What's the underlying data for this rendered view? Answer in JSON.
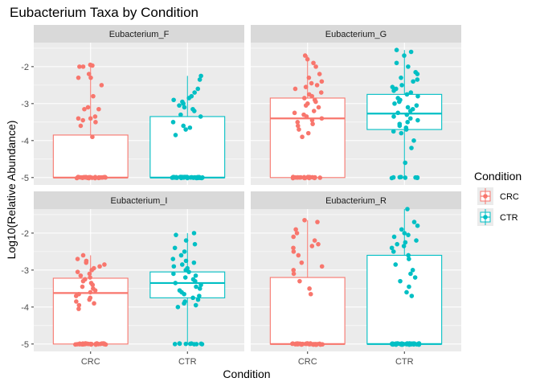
{
  "chart_data": {
    "type": "boxplot",
    "title": "Eubacterium Taxa by Condition",
    "xlabel": "Condition",
    "ylabel": "Log10(Relative Abundance)",
    "categories": [
      "CRC",
      "CTR"
    ],
    "ylim": [
      -5.2,
      -1.35
    ],
    "yticks": [
      -5,
      -4,
      -3,
      -2
    ],
    "ytick_labels": [
      "-5",
      "-4",
      "-3",
      "-2"
    ],
    "grid": true,
    "legend": {
      "title": "Condition",
      "position": "right",
      "entries": [
        {
          "name": "CRC",
          "color": "#F8766D"
        },
        {
          "name": "CTR",
          "color": "#00BFC4"
        }
      ]
    },
    "colors": {
      "CRC": "#F8766D",
      "CTR": "#00BFC4",
      "panel_bg": "#EBEBEB",
      "strip_bg": "#D9D9D9"
    },
    "panels": [
      {
        "label": "Eubacterium_F",
        "boxes": [
          {
            "group": "CRC",
            "min": -5.0,
            "q1": -5.0,
            "median": -5.0,
            "q3": -3.85,
            "max": -1.95,
            "n_floor": 28,
            "points": [
              -1.95,
              -1.97,
              -2.0,
              -2.0,
              -2.2,
              -2.3,
              -2.3,
              -2.5,
              -2.8,
              -3.1,
              -3.15,
              -3.15,
              -3.35,
              -3.4,
              -3.4,
              -3.45,
              -3.5,
              -3.6,
              -3.9
            ]
          },
          {
            "group": "CTR",
            "min": -5.0,
            "q1": -5.0,
            "median": -5.0,
            "q3": -3.35,
            "max": -2.25,
            "n_floor": 38,
            "points": [
              -2.25,
              -2.35,
              -2.6,
              -2.7,
              -2.8,
              -2.85,
              -2.9,
              -2.95,
              -3.0,
              -3.05,
              -3.1,
              -3.15,
              -3.2,
              -3.3,
              -3.35,
              -3.5,
              -3.6,
              -3.65,
              -3.7,
              -3.85
            ]
          }
        ]
      },
      {
        "label": "Eubacterium_G",
        "boxes": [
          {
            "group": "CRC",
            "min": -5.0,
            "q1": -5.0,
            "median": -3.4,
            "q3": -2.85,
            "max": -1.7,
            "n_floor": 22,
            "points": [
              -1.7,
              -1.8,
              -1.9,
              -2.0,
              -2.2,
              -2.3,
              -2.4,
              -2.45,
              -2.5,
              -2.55,
              -2.6,
              -2.7,
              -2.75,
              -2.8,
              -2.85,
              -2.9,
              -2.95,
              -3.0,
              -3.05,
              -3.1,
              -3.2,
              -3.25,
              -3.3,
              -3.35,
              -3.4,
              -3.45,
              -3.5,
              -3.55,
              -3.6,
              -3.7,
              -3.8,
              -3.9
            ]
          },
          {
            "group": "CTR",
            "min": -5.0,
            "q1": -3.7,
            "median": -3.27,
            "q3": -2.75,
            "max": -1.55,
            "n_floor": 8,
            "points": [
              -1.55,
              -1.6,
              -1.7,
              -1.9,
              -2.0,
              -2.15,
              -2.2,
              -2.3,
              -2.35,
              -2.4,
              -2.5,
              -2.55,
              -2.6,
              -2.65,
              -2.7,
              -2.75,
              -2.8,
              -2.85,
              -2.9,
              -2.95,
              -3.0,
              -3.05,
              -3.1,
              -3.15,
              -3.2,
              -3.25,
              -3.3,
              -3.35,
              -3.4,
              -3.45,
              -3.5,
              -3.55,
              -3.6,
              -3.65,
              -3.7,
              -3.75,
              -3.8,
              -4.0,
              -4.2,
              -4.6
            ]
          }
        ]
      },
      {
        "label": "Eubacterium_I",
        "boxes": [
          {
            "group": "CRC",
            "min": -5.0,
            "q1": -5.0,
            "median": -3.62,
            "q3": -3.22,
            "max": -2.6,
            "n_floor": 34,
            "points": [
              -2.6,
              -2.7,
              -2.75,
              -2.8,
              -2.85,
              -2.9,
              -2.95,
              -3.0,
              -3.05,
              -3.1,
              -3.15,
              -3.2,
              -3.25,
              -3.3,
              -3.35,
              -3.4,
              -3.45,
              -3.5,
              -3.55,
              -3.6,
              -3.65,
              -3.7,
              -3.75,
              -3.8,
              -3.85,
              -3.9,
              -3.95,
              -4.05
            ]
          },
          {
            "group": "CTR",
            "min": -5.0,
            "q1": -3.75,
            "median": -3.35,
            "q3": -3.05,
            "max": -2.0,
            "n_floor": 10,
            "points": [
              -2.0,
              -2.05,
              -2.2,
              -2.3,
              -2.4,
              -2.5,
              -2.6,
              -2.7,
              -2.75,
              -2.8,
              -2.85,
              -2.9,
              -2.95,
              -3.0,
              -3.05,
              -3.1,
              -3.15,
              -3.2,
              -3.25,
              -3.3,
              -3.35,
              -3.4,
              -3.45,
              -3.5,
              -3.55,
              -3.6,
              -3.65,
              -3.7,
              -3.75,
              -3.8,
              -3.85,
              -3.9,
              -3.95,
              -4.0
            ]
          }
        ]
      },
      {
        "label": "Eubacterium_R",
        "boxes": [
          {
            "group": "CRC",
            "min": -5.0,
            "q1": -5.0,
            "median": -5.0,
            "q3": -3.2,
            "max": -1.65,
            "n_floor": 40,
            "points": [
              -1.65,
              -1.7,
              -1.9,
              -2.0,
              -2.1,
              -2.2,
              -2.3,
              -2.35,
              -2.4,
              -2.5,
              -2.6,
              -2.8,
              -2.9,
              -3.0,
              -3.1,
              -3.3,
              -3.5,
              -3.65
            ]
          },
          {
            "group": "CTR",
            "min": -5.0,
            "q1": -5.0,
            "median": -5.0,
            "q3": -2.6,
            "max": -1.35,
            "n_floor": 36,
            "points": [
              -1.35,
              -1.7,
              -1.8,
              -1.9,
              -2.0,
              -2.05,
              -2.1,
              -2.2,
              -2.25,
              -2.3,
              -2.35,
              -2.4,
              -2.5,
              -2.6,
              -2.7,
              -2.85,
              -3.0,
              -3.1,
              -3.2,
              -3.3,
              -3.45,
              -3.6,
              -3.7
            ]
          }
        ]
      }
    ]
  }
}
